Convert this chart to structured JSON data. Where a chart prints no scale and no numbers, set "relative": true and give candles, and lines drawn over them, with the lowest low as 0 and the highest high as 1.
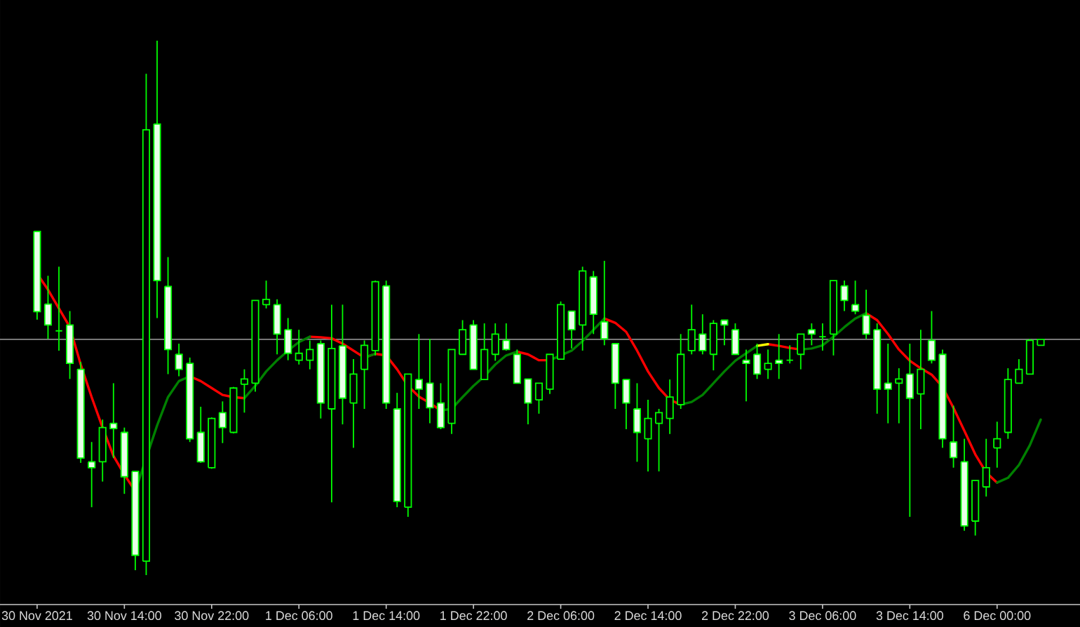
{
  "chart_data": {
    "type": "candlestick",
    "relative": true,
    "categories": [
      "30 Nov 2021",
      null,
      null,
      null,
      null,
      null,
      null,
      null,
      "30 Nov 14:00",
      null,
      null,
      null,
      null,
      null,
      null,
      null,
      "30 Nov 22:00",
      null,
      null,
      null,
      null,
      null,
      null,
      null,
      "1 Dec 06:00",
      null,
      null,
      null,
      null,
      null,
      null,
      null,
      "1 Dec 14:00",
      null,
      null,
      null,
      null,
      null,
      null,
      null,
      "1 Dec 22:00",
      null,
      null,
      null,
      null,
      null,
      null,
      null,
      "2 Dec 06:00",
      null,
      null,
      null,
      null,
      null,
      null,
      null,
      "2 Dec 14:00",
      null,
      null,
      null,
      null,
      null,
      null,
      null,
      "2 Dec 22:00",
      null,
      null,
      null,
      null,
      null,
      null,
      null,
      "3 Dec 06:00",
      null,
      null,
      null,
      null,
      null,
      null,
      null,
      "3 Dec 14:00",
      null,
      null,
      null,
      null,
      null,
      null,
      null,
      "6 Dec 00:00",
      null,
      null,
      null,
      null
    ],
    "ohlc": [
      [
        0.643,
        0.643,
        0.478,
        0.493
      ],
      [
        0.507,
        0.56,
        0.442,
        0.468
      ],
      [
        0.457,
        0.577,
        0.42,
        0.457
      ],
      [
        0.468,
        0.494,
        0.367,
        0.396
      ],
      [
        0.385,
        0.399,
        0.21,
        0.219
      ],
      [
        0.212,
        0.249,
        0.127,
        0.201
      ],
      [
        0.212,
        0.291,
        0.175,
        0.276
      ],
      [
        0.284,
        0.359,
        0.219,
        0.274
      ],
      [
        0.267,
        0.276,
        0.152,
        0.184
      ],
      [
        0.194,
        0.194,
        0.009,
        0.037
      ],
      [
        0.026,
        0.938,
        0,
        0.833
      ],
      [
        0.844,
        1,
        0.481,
        0.551
      ],
      [
        0.54,
        0.595,
        0.376,
        0.422
      ],
      [
        0.413,
        0.433,
        0.372,
        0.385
      ],
      [
        0.396,
        0.407,
        0.249,
        0.255
      ],
      [
        0.267,
        0.315,
        0.21,
        0.212
      ],
      [
        0.201,
        0.295,
        0.199,
        0.293
      ],
      [
        0.304,
        0.325,
        0.247,
        0.276
      ],
      [
        0.267,
        0.352,
        0.265,
        0.35
      ],
      [
        0.357,
        0.385,
        0.304,
        0.367
      ],
      [
        0.359,
        0.514,
        0.343,
        0.514
      ],
      [
        0.506,
        0.551,
        0.499,
        0.516
      ],
      [
        0.506,
        0.516,
        0.413,
        0.451
      ],
      [
        0.459,
        0.481,
        0.402,
        0.415
      ],
      [
        0.402,
        0.459,
        0.394,
        0.415
      ],
      [
        0.402,
        0.439,
        0.385,
        0.422
      ],
      [
        0.433,
        0.439,
        0.293,
        0.322
      ],
      [
        0.311,
        0.506,
        0.136,
        0.424
      ],
      [
        0.429,
        0.506,
        0.282,
        0.331
      ],
      [
        0.322,
        0.404,
        0.238,
        0.376
      ],
      [
        0.385,
        0.439,
        0.311,
        0.43
      ],
      [
        0.42,
        0.551,
        0.411,
        0.549
      ],
      [
        0.541,
        0.551,
        0.311,
        0.322
      ],
      [
        0.311,
        0.341,
        0.127,
        0.138
      ],
      [
        0.127,
        0.376,
        0.109,
        0.376
      ],
      [
        0.366,
        0.451,
        0.311,
        0.348
      ],
      [
        0.359,
        0.442,
        0.284,
        0.313
      ],
      [
        0.322,
        0.359,
        0.273,
        0.276
      ],
      [
        0.284,
        0.422,
        0.264,
        0.422
      ],
      [
        0.413,
        0.477,
        0.413,
        0.459
      ],
      [
        0.468,
        0.477,
        0.385,
        0.385
      ],
      [
        0.366,
        0.471,
        0.366,
        0.422
      ],
      [
        0.413,
        0.471,
        0.401,
        0.451
      ],
      [
        0.439,
        0.471,
        0.42,
        0.422
      ],
      [
        0.413,
        0.422,
        0.359,
        0.359
      ],
      [
        0.367,
        0.367,
        0.282,
        0.322
      ],
      [
        0.328,
        0.359,
        0.302,
        0.359
      ],
      [
        0.348,
        0.413,
        0.339,
        0.413
      ],
      [
        0.404,
        0.512,
        0.404,
        0.506
      ],
      [
        0.494,
        0.494,
        0.424,
        0.459
      ],
      [
        0.468,
        0.577,
        0.42,
        0.569
      ],
      [
        0.558,
        0.569,
        0.451,
        0.488
      ],
      [
        0.474,
        0.588,
        0.43,
        0.442
      ],
      [
        0.433,
        0.433,
        0.311,
        0.359
      ],
      [
        0.366,
        0.366,
        0.273,
        0.322
      ],
      [
        0.311,
        0.359,
        0.212,
        0.267
      ],
      [
        0.255,
        0.328,
        0.194,
        0.293
      ],
      [
        0.284,
        0.311,
        0.194,
        0.304
      ],
      [
        0.293,
        0.366,
        0.264,
        0.333
      ],
      [
        0.319,
        0.451,
        0.311,
        0.413
      ],
      [
        0.42,
        0.506,
        0.413,
        0.459
      ],
      [
        0.451,
        0.488,
        0.413,
        0.42
      ],
      [
        0.413,
        0.477,
        0.383,
        0.471
      ],
      [
        0.477,
        0.477,
        0.43,
        0.468
      ],
      [
        0.459,
        0.471,
        0.413,
        0.413
      ],
      [
        0.402,
        0.422,
        0.325,
        0.396
      ],
      [
        0.413,
        0.433,
        0.367,
        0.376
      ],
      [
        0.385,
        0.422,
        0.367,
        0.396
      ],
      [
        0.402,
        0.451,
        0.367,
        0.396
      ],
      [
        0.402,
        0.43,
        0.396,
        0.402
      ],
      [
        0.413,
        0.451,
        0.385,
        0.451
      ],
      [
        0.459,
        0.471,
        0.43,
        0.451
      ],
      [
        0.446,
        0.471,
        0.42,
        0.446
      ],
      [
        0.451,
        0.551,
        0.411,
        0.551
      ],
      [
        0.541,
        0.551,
        0.494,
        0.514
      ],
      [
        0.506,
        0.551,
        0.488,
        0.494
      ],
      [
        0.486,
        0.534,
        0.442,
        0.451
      ],
      [
        0.459,
        0.471,
        0.302,
        0.348
      ],
      [
        0.359,
        0.433,
        0.284,
        0.348
      ],
      [
        0.359,
        0.387,
        0.284,
        0.367
      ],
      [
        0.376,
        0.433,
        0.109,
        0.331
      ],
      [
        0.339,
        0.459,
        0.273,
        0.385
      ],
      [
        0.439,
        0.494,
        0.396,
        0.402
      ],
      [
        0.413,
        0.422,
        0.238,
        0.255
      ],
      [
        0.249,
        0.317,
        0.201,
        0.22
      ],
      [
        0.212,
        0.255,
        0.083,
        0.092
      ],
      [
        0.101,
        0.177,
        0.074,
        0.177
      ],
      [
        0.165,
        0.255,
        0.147,
        0.201
      ],
      [
        0.238,
        0.287,
        0.201,
        0.255
      ],
      [
        0.267,
        0.387,
        0.255,
        0.366
      ],
      [
        0.359,
        0.404,
        0.359,
        0.385
      ],
      [
        0.376,
        0.442,
        0.376,
        0.439
      ],
      [
        0.43,
        0.442,
        0.43,
        0.441
      ]
    ],
    "color": "#00ff00",
    "colors": [
      "#e8ffe8",
      "#e8ffe8",
      "#00ff00",
      "#e8ffe8",
      "#e8ffe8",
      "#e8ffe8",
      "#000000",
      "#e8ffe8",
      "#e8ffe8",
      "#e8ffe8",
      "#000000",
      "#e8ffe8",
      "#e8ffe8",
      "#e8ffe8",
      "#e8ffe8",
      "#e8ffe8",
      "#000000",
      "#e8ffe8",
      "#000000",
      "#000000",
      "#000000",
      "#000000",
      "#e8ffe8",
      "#e8ffe8",
      "#000000",
      "#000000",
      "#e8ffe8",
      "#000000",
      "#e8ffe8",
      "#000000",
      "#000000",
      "#000000",
      "#e8ffe8",
      "#e8ffe8",
      "#000000",
      "#e8ffe8",
      "#e8ffe8",
      "#e8ffe8",
      "#000000",
      "#000000",
      "#e8ffe8",
      "#000000",
      "#000000",
      "#e8ffe8",
      "#e8ffe8",
      "#e8ffe8",
      "#000000",
      "#000000",
      "#000000",
      "#e8ffe8",
      "#000000",
      "#e8ffe8",
      "#e8ffe8",
      "#e8ffe8",
      "#e8ffe8",
      "#e8ffe8",
      "#000000",
      "#000000",
      "#000000",
      "#000000",
      "#000000",
      "#e8ffe8",
      "#000000",
      "#e8ffe8",
      "#e8ffe8",
      "#e8ffe8",
      "#e8ffe8",
      "#000000",
      "#e8ffe8",
      "#00ff00",
      "#000000",
      "#e8ffe8",
      "#00ff00",
      "#000000",
      "#e8ffe8",
      "#e8ffe8",
      "#e8ffe8",
      "#e8ffe8",
      "#e8ffe8",
      "#000000",
      "#e8ffe8",
      "#000000",
      "#e8ffe8",
      "#e8ffe8",
      "#e8ffe8",
      "#e8ffe8",
      "#000000",
      "#000000",
      "#000000",
      "#000000",
      "#000000",
      "#000000",
      "#000000"
    ],
    "series": [
      {
        "type": "line",
        "color": "#ff0000",
        "values": [
          0.564,
          0.534,
          0.499,
          0.464,
          0.394,
          0.333,
          0.276,
          0.223,
          0.188,
          0.157,
          null,
          null,
          null,
          null,
          0.372,
          0.363,
          0.35,
          0.337,
          0.333,
          0.331,
          null,
          null,
          null,
          null,
          null,
          0.446,
          0.445,
          0.443,
          0.433,
          0.42,
          0.407,
          0.414,
          0.411,
          0.385,
          0.354,
          0.334,
          0.322,
          0.308,
          null,
          null,
          null,
          null,
          null,
          null,
          0.418,
          0.413,
          0.402,
          0.402,
          null,
          null,
          null,
          null,
          0.48,
          0.472,
          0.455,
          0.42,
          0.381,
          0.35,
          0.328,
          0.319,
          null,
          null,
          null,
          null,
          null,
          null,
          null,
          0.432,
          0.429,
          0.425,
          0.422,
          null,
          null,
          null,
          null,
          null,
          0.49,
          0.477,
          0.451,
          0.422,
          0.401,
          0.387,
          0.375,
          0.352,
          0.313,
          0.27,
          0.226,
          0.192,
          0.173,
          null,
          null,
          null,
          null
        ]
      },
      {
        "type": "line",
        "color": "#008000",
        "values": [
          null,
          null,
          null,
          null,
          null,
          null,
          null,
          null,
          null,
          0.157,
          0.219,
          0.28,
          0.333,
          0.363,
          0.372,
          null,
          null,
          null,
          null,
          0.331,
          0.354,
          0.381,
          0.402,
          0.42,
          0.436,
          0.446,
          null,
          null,
          null,
          null,
          0.407,
          0.414,
          null,
          null,
          null,
          null,
          null,
          0.308,
          0.311,
          0.333,
          0.354,
          0.372,
          0.394,
          0.411,
          0.418,
          null,
          null,
          0.402,
          0.411,
          0.42,
          0.438,
          0.459,
          0.48,
          null,
          null,
          null,
          null,
          null,
          null,
          0.319,
          0.324,
          0.337,
          0.359,
          0.381,
          0.401,
          0.415,
          0.429,
          null,
          null,
          null,
          0.422,
          0.424,
          0.43,
          0.446,
          0.464,
          0.48,
          0.49,
          null,
          null,
          null,
          null,
          null,
          null,
          null,
          null,
          null,
          null,
          null,
          0.173,
          0.182,
          0.206,
          0.243,
          0.291
        ]
      },
      {
        "type": "line",
        "color": "#ffff00",
        "values": [
          null,
          null,
          null,
          null,
          null,
          null,
          null,
          null,
          null,
          null,
          null,
          null,
          null,
          null,
          null,
          null,
          null,
          null,
          null,
          null,
          null,
          null,
          null,
          null,
          null,
          null,
          null,
          null,
          null,
          null,
          null,
          null,
          null,
          null,
          null,
          null,
          null,
          null,
          null,
          null,
          null,
          null,
          null,
          null,
          null,
          null,
          null,
          null,
          null,
          null,
          null,
          null,
          null,
          null,
          null,
          null,
          null,
          null,
          null,
          null,
          null,
          null,
          null,
          null,
          null,
          null,
          0.429,
          0.432,
          null,
          null,
          null,
          null,
          null,
          null,
          null,
          null,
          null,
          null,
          null,
          null,
          null,
          null,
          null,
          null,
          null,
          null,
          null,
          null,
          null,
          null,
          null,
          null,
          null
        ]
      }
    ],
    "ref_lines": [
      {
        "axis": "y",
        "value": 0.441,
        "color": "#c0c0c0"
      }
    ]
  }
}
